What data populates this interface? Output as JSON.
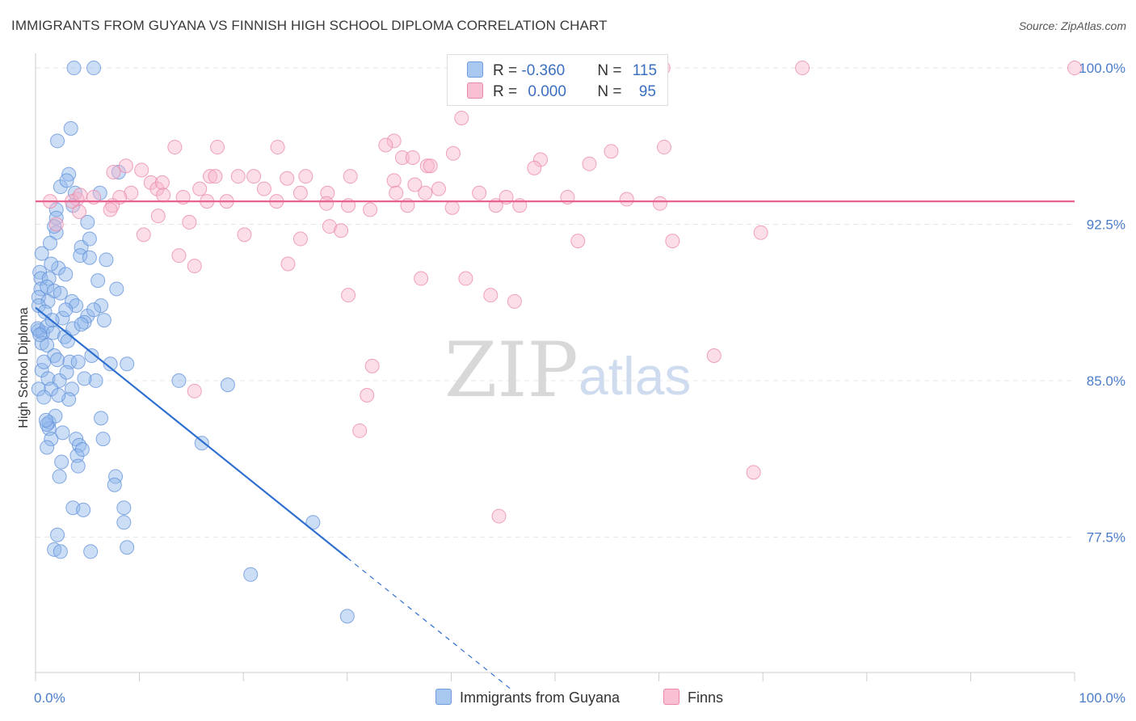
{
  "title": "IMMIGRANTS FROM GUYANA VS FINNISH HIGH SCHOOL DIPLOMA CORRELATION CHART",
  "source": "Source: ZipAtlas.com",
  "watermark": {
    "zip": "ZIP",
    "atlas": "atlas"
  },
  "legend": {
    "rows": [
      {
        "r_label": "R = ",
        "r_value": "-0.360",
        "n_label": "N = ",
        "n_value": "115",
        "color": "#a9c8f0",
        "border": "#6f9de0"
      },
      {
        "r_label": "R = ",
        "r_value": "0.000",
        "n_label": "N = ",
        "n_value": "95",
        "color": "#f9bfd3",
        "border": "#ec88aa"
      }
    ]
  },
  "bottom_legend": {
    "items": [
      {
        "label": "Immigrants from Guyana",
        "color": "#a9c8f0",
        "border": "#6f9de0"
      },
      {
        "label": "Finns",
        "color": "#f9bfd3",
        "border": "#ec88aa"
      }
    ]
  },
  "chart_data": {
    "type": "scatter",
    "title": "IMMIGRANTS FROM GUYANA VS FINNISH HIGH SCHOOL DIPLOMA CORRELATION CHART",
    "xlabel": "",
    "ylabel": "High School Diploma",
    "xlim": [
      0,
      100
    ],
    "ylim": [
      71.0,
      100.7
    ],
    "x_tick_labels": [
      "0.0%",
      "100.0%"
    ],
    "y_ticks": [
      77.5,
      85.0,
      92.5,
      100.0
    ],
    "y_tick_labels": [
      "77.5%",
      "85.0%",
      "92.5%",
      "100.0%"
    ],
    "grid": true,
    "series": [
      {
        "name": "Immigrants from Guyana",
        "color": "#8fb5eb",
        "stroke": "#5f8fd8",
        "trend": {
          "x0": 0.0,
          "y0": 88.5,
          "x1": 30.0,
          "y1": 76.5,
          "dash_to_x": 46.0,
          "color": "#2e6fd0"
        },
        "points": [
          [
            3.7,
            100
          ],
          [
            5.6,
            100
          ],
          [
            3.4,
            97.1
          ],
          [
            2.1,
            96.5
          ],
          [
            3.2,
            94.9
          ],
          [
            8.0,
            95.0
          ],
          [
            2.4,
            94.3
          ],
          [
            3.0,
            94.6
          ],
          [
            3.8,
            94.0
          ],
          [
            6.2,
            94.0
          ],
          [
            2.0,
            93.2
          ],
          [
            3.6,
            93.4
          ],
          [
            2.0,
            92.8
          ],
          [
            5.0,
            92.6
          ],
          [
            2.0,
            92.1
          ],
          [
            1.4,
            91.6
          ],
          [
            4.4,
            91.4
          ],
          [
            5.2,
            91.8
          ],
          [
            4.3,
            91.0
          ],
          [
            5.2,
            90.9
          ],
          [
            6.8,
            90.8
          ],
          [
            2.2,
            90.4
          ],
          [
            1.5,
            90.6
          ],
          [
            0.4,
            90.2
          ],
          [
            0.5,
            89.9
          ],
          [
            1.3,
            89.9
          ],
          [
            0.5,
            89.4
          ],
          [
            1.1,
            89.5
          ],
          [
            1.8,
            89.3
          ],
          [
            0.3,
            89.0
          ],
          [
            1.2,
            88.8
          ],
          [
            2.4,
            89.2
          ],
          [
            7.8,
            89.4
          ],
          [
            0.3,
            88.6
          ],
          [
            3.5,
            88.8
          ],
          [
            3.9,
            88.6
          ],
          [
            6.3,
            88.6
          ],
          [
            5.0,
            88.1
          ],
          [
            2.6,
            88.0
          ],
          [
            4.7,
            87.8
          ],
          [
            0.3,
            87.4
          ],
          [
            0.7,
            87.3
          ],
          [
            0.2,
            87.5
          ],
          [
            3.6,
            87.5
          ],
          [
            1.1,
            87.6
          ],
          [
            6.6,
            87.9
          ],
          [
            1.7,
            87.3
          ],
          [
            0.6,
            86.8
          ],
          [
            2.8,
            87.1
          ],
          [
            1.1,
            86.7
          ],
          [
            1.8,
            86.2
          ],
          [
            2.1,
            86.0
          ],
          [
            3.3,
            85.9
          ],
          [
            4.1,
            85.9
          ],
          [
            5.4,
            86.2
          ],
          [
            0.6,
            85.5
          ],
          [
            7.2,
            85.8
          ],
          [
            8.8,
            85.8
          ],
          [
            1.2,
            85.1
          ],
          [
            2.3,
            85.0
          ],
          [
            5.8,
            85.0
          ],
          [
            0.3,
            84.6
          ],
          [
            1.5,
            84.6
          ],
          [
            3.5,
            84.6
          ],
          [
            0.8,
            84.2
          ],
          [
            3.2,
            84.1
          ],
          [
            13.8,
            85.0
          ],
          [
            18.5,
            84.8
          ],
          [
            1.3,
            83.0
          ],
          [
            1.9,
            83.3
          ],
          [
            6.3,
            83.2
          ],
          [
            1.3,
            82.7
          ],
          [
            1.1,
            82.9
          ],
          [
            1.5,
            82.2
          ],
          [
            3.9,
            82.2
          ],
          [
            4.2,
            81.9
          ],
          [
            6.5,
            82.2
          ],
          [
            16.0,
            82.0
          ],
          [
            1.1,
            81.8
          ],
          [
            4.0,
            81.4
          ],
          [
            2.5,
            81.1
          ],
          [
            4.1,
            80.9
          ],
          [
            7.7,
            80.4
          ],
          [
            2.3,
            80.4
          ],
          [
            7.6,
            80.0
          ],
          [
            3.6,
            78.9
          ],
          [
            4.6,
            78.8
          ],
          [
            8.5,
            78.9
          ],
          [
            8.5,
            78.2
          ],
          [
            26.7,
            78.2
          ],
          [
            2.1,
            77.6
          ],
          [
            8.8,
            77.0
          ],
          [
            1.8,
            76.9
          ],
          [
            2.4,
            76.8
          ],
          [
            5.3,
            76.8
          ],
          [
            20.7,
            75.7
          ],
          [
            30.0,
            73.7
          ],
          [
            0.4,
            87.2
          ],
          [
            0.9,
            88.3
          ],
          [
            1.6,
            87.9
          ],
          [
            2.9,
            88.4
          ],
          [
            4.4,
            87.7
          ],
          [
            0.8,
            85.9
          ],
          [
            2.2,
            84.3
          ],
          [
            3.0,
            85.4
          ],
          [
            1.0,
            83.1
          ],
          [
            2.6,
            82.5
          ],
          [
            4.5,
            81.7
          ],
          [
            3.1,
            86.9
          ],
          [
            5.6,
            88.4
          ],
          [
            0.6,
            91.1
          ],
          [
            2.9,
            90.1
          ],
          [
            1.8,
            92.4
          ],
          [
            6.0,
            89.8
          ],
          [
            4.7,
            85.1
          ]
        ]
      },
      {
        "name": "Finns",
        "color": "#f8b5cb",
        "stroke": "#ea86a8",
        "trend": {
          "x0": 0.0,
          "y0": 93.6,
          "x1": 100.0,
          "y1": 93.6,
          "color": "#e8638f"
        },
        "points": [
          [
            55.2,
            100
          ],
          [
            60.4,
            100
          ],
          [
            73.8,
            100
          ],
          [
            100,
            100
          ],
          [
            41.0,
            97.6
          ],
          [
            23.3,
            96.2
          ],
          [
            34.5,
            96.5
          ],
          [
            13.4,
            96.2
          ],
          [
            17.5,
            96.2
          ],
          [
            37.7,
            95.3
          ],
          [
            40.2,
            95.9
          ],
          [
            55.4,
            96.0
          ],
          [
            35.3,
            95.7
          ],
          [
            36.3,
            95.7
          ],
          [
            38.0,
            95.3
          ],
          [
            33.7,
            96.3
          ],
          [
            60.5,
            96.2
          ],
          [
            8.7,
            95.3
          ],
          [
            48.6,
            95.6
          ],
          [
            53.3,
            95.4
          ],
          [
            7.5,
            95.0
          ],
          [
            10.2,
            95.1
          ],
          [
            16.8,
            94.8
          ],
          [
            17.3,
            94.8
          ],
          [
            19.5,
            94.8
          ],
          [
            21.0,
            94.8
          ],
          [
            24.2,
            94.7
          ],
          [
            26.0,
            94.8
          ],
          [
            30.3,
            94.8
          ],
          [
            34.5,
            94.6
          ],
          [
            11.1,
            94.5
          ],
          [
            11.7,
            94.2
          ],
          [
            12.2,
            94.5
          ],
          [
            9.2,
            94.0
          ],
          [
            15.8,
            94.2
          ],
          [
            22.0,
            94.2
          ],
          [
            25.5,
            94.0
          ],
          [
            28.1,
            94.0
          ],
          [
            34.7,
            94.0
          ],
          [
            37.5,
            94.0
          ],
          [
            38.8,
            94.2
          ],
          [
            42.7,
            94.0
          ],
          [
            45.3,
            93.8
          ],
          [
            5.6,
            93.8
          ],
          [
            8.1,
            93.8
          ],
          [
            12.3,
            93.9
          ],
          [
            14.2,
            93.8
          ],
          [
            16.5,
            93.6
          ],
          [
            4.0,
            93.7
          ],
          [
            3.5,
            93.6
          ],
          [
            4.3,
            93.9
          ],
          [
            7.4,
            93.4
          ],
          [
            1.4,
            93.6
          ],
          [
            18.4,
            93.6
          ],
          [
            23.2,
            93.6
          ],
          [
            30.1,
            93.4
          ],
          [
            32.2,
            93.2
          ],
          [
            35.8,
            93.4
          ],
          [
            40.1,
            93.3
          ],
          [
            44.3,
            93.4
          ],
          [
            46.6,
            93.4
          ],
          [
            51.2,
            93.8
          ],
          [
            56.9,
            93.7
          ],
          [
            60.1,
            93.5
          ],
          [
            7.2,
            93.2
          ],
          [
            4.2,
            93.1
          ],
          [
            11.8,
            92.9
          ],
          [
            14.8,
            92.6
          ],
          [
            2.0,
            92.5
          ],
          [
            10.4,
            92.0
          ],
          [
            20.1,
            92.0
          ],
          [
            25.5,
            91.8
          ],
          [
            28.3,
            92.4
          ],
          [
            29.4,
            92.2
          ],
          [
            52.2,
            91.7
          ],
          [
            61.3,
            91.7
          ],
          [
            69.8,
            92.1
          ],
          [
            13.8,
            91.0
          ],
          [
            15.3,
            90.5
          ],
          [
            24.3,
            90.6
          ],
          [
            37.1,
            89.9
          ],
          [
            41.4,
            89.9
          ],
          [
            30.1,
            89.1
          ],
          [
            43.8,
            89.1
          ],
          [
            46.1,
            88.8
          ],
          [
            32.4,
            85.7
          ],
          [
            65.3,
            86.2
          ],
          [
            31.9,
            84.3
          ],
          [
            31.2,
            82.6
          ],
          [
            69.1,
            80.6
          ],
          [
            44.6,
            78.5
          ],
          [
            15.3,
            84.5
          ],
          [
            28.0,
            93.5
          ],
          [
            36.5,
            94.4
          ],
          [
            48.0,
            95.2
          ]
        ]
      }
    ]
  }
}
